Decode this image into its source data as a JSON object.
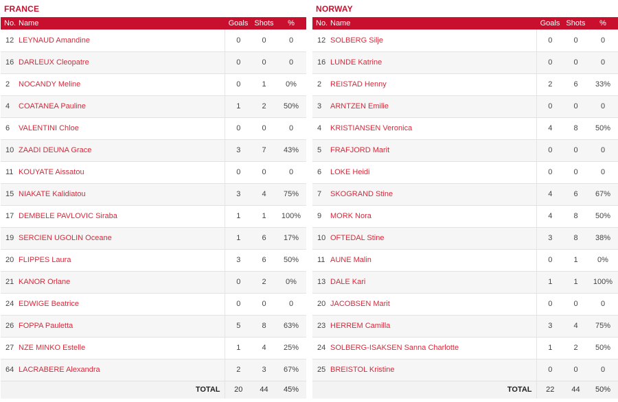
{
  "columns": {
    "no": "No.",
    "name": "Name",
    "goals": "Goals",
    "shots": "Shots",
    "pct": "%"
  },
  "total_label": "TOTAL",
  "teams": [
    {
      "name": "FRANCE",
      "players": [
        {
          "no": "12",
          "name": "LEYNAUD Amandine",
          "goals": "0",
          "shots": "0",
          "pct": "0"
        },
        {
          "no": "16",
          "name": "DARLEUX Cleopatre",
          "goals": "0",
          "shots": "0",
          "pct": "0"
        },
        {
          "no": "2",
          "name": "NOCANDY Meline",
          "goals": "0",
          "shots": "1",
          "pct": "0%"
        },
        {
          "no": "4",
          "name": "COATANEA Pauline",
          "goals": "1",
          "shots": "2",
          "pct": "50%"
        },
        {
          "no": "6",
          "name": "VALENTINI Chloe",
          "goals": "0",
          "shots": "0",
          "pct": "0"
        },
        {
          "no": "10",
          "name": "ZAADI DEUNA Grace",
          "goals": "3",
          "shots": "7",
          "pct": "43%"
        },
        {
          "no": "11",
          "name": "KOUYATE Aissatou",
          "goals": "0",
          "shots": "0",
          "pct": "0"
        },
        {
          "no": "15",
          "name": "NIAKATE Kalidiatou",
          "goals": "3",
          "shots": "4",
          "pct": "75%"
        },
        {
          "no": "17",
          "name": "DEMBELE PAVLOVIC Siraba",
          "goals": "1",
          "shots": "1",
          "pct": "100%"
        },
        {
          "no": "19",
          "name": "SERCIEN UGOLIN Oceane",
          "goals": "1",
          "shots": "6",
          "pct": "17%"
        },
        {
          "no": "20",
          "name": "FLIPPES Laura",
          "goals": "3",
          "shots": "6",
          "pct": "50%"
        },
        {
          "no": "21",
          "name": "KANOR Orlane",
          "goals": "0",
          "shots": "2",
          "pct": "0%"
        },
        {
          "no": "24",
          "name": "EDWIGE Beatrice",
          "goals": "0",
          "shots": "0",
          "pct": "0"
        },
        {
          "no": "26",
          "name": "FOPPA Pauletta",
          "goals": "5",
          "shots": "8",
          "pct": "63%"
        },
        {
          "no": "27",
          "name": "NZE MINKO Estelle",
          "goals": "1",
          "shots": "4",
          "pct": "25%"
        },
        {
          "no": "64",
          "name": "LACRABERE Alexandra",
          "goals": "2",
          "shots": "3",
          "pct": "67%"
        }
      ],
      "total": {
        "goals": "20",
        "shots": "44",
        "pct": "45%"
      }
    },
    {
      "name": "NORWAY",
      "players": [
        {
          "no": "12",
          "name": "SOLBERG Silje",
          "goals": "0",
          "shots": "0",
          "pct": "0"
        },
        {
          "no": "16",
          "name": "LUNDE Katrine",
          "goals": "0",
          "shots": "0",
          "pct": "0"
        },
        {
          "no": "2",
          "name": "REISTAD Henny",
          "goals": "2",
          "shots": "6",
          "pct": "33%"
        },
        {
          "no": "3",
          "name": "ARNTZEN Emilie",
          "goals": "0",
          "shots": "0",
          "pct": "0"
        },
        {
          "no": "4",
          "name": "KRISTIANSEN Veronica",
          "goals": "4",
          "shots": "8",
          "pct": "50%"
        },
        {
          "no": "5",
          "name": "FRAFJORD Marit",
          "goals": "0",
          "shots": "0",
          "pct": "0"
        },
        {
          "no": "6",
          "name": "LOKE Heidi",
          "goals": "0",
          "shots": "0",
          "pct": "0"
        },
        {
          "no": "7",
          "name": "SKOGRAND Stine",
          "goals": "4",
          "shots": "6",
          "pct": "67%"
        },
        {
          "no": "9",
          "name": "MORK Nora",
          "goals": "4",
          "shots": "8",
          "pct": "50%"
        },
        {
          "no": "10",
          "name": "OFTEDAL Stine",
          "goals": "3",
          "shots": "8",
          "pct": "38%"
        },
        {
          "no": "11",
          "name": "AUNE Malin",
          "goals": "0",
          "shots": "1",
          "pct": "0%"
        },
        {
          "no": "13",
          "name": "DALE Kari",
          "goals": "1",
          "shots": "1",
          "pct": "100%"
        },
        {
          "no": "20",
          "name": "JACOBSEN Marit",
          "goals": "0",
          "shots": "0",
          "pct": "0"
        },
        {
          "no": "23",
          "name": "HERREM Camilla",
          "goals": "3",
          "shots": "4",
          "pct": "75%"
        },
        {
          "no": "24",
          "name": "SOLBERG-ISAKSEN Sanna Charlotte",
          "goals": "1",
          "shots": "2",
          "pct": "50%"
        },
        {
          "no": "25",
          "name": "BREISTOL Kristine",
          "goals": "0",
          "shots": "0",
          "pct": "0"
        }
      ],
      "total": {
        "goals": "22",
        "shots": "44",
        "pct": "50%"
      }
    }
  ]
}
